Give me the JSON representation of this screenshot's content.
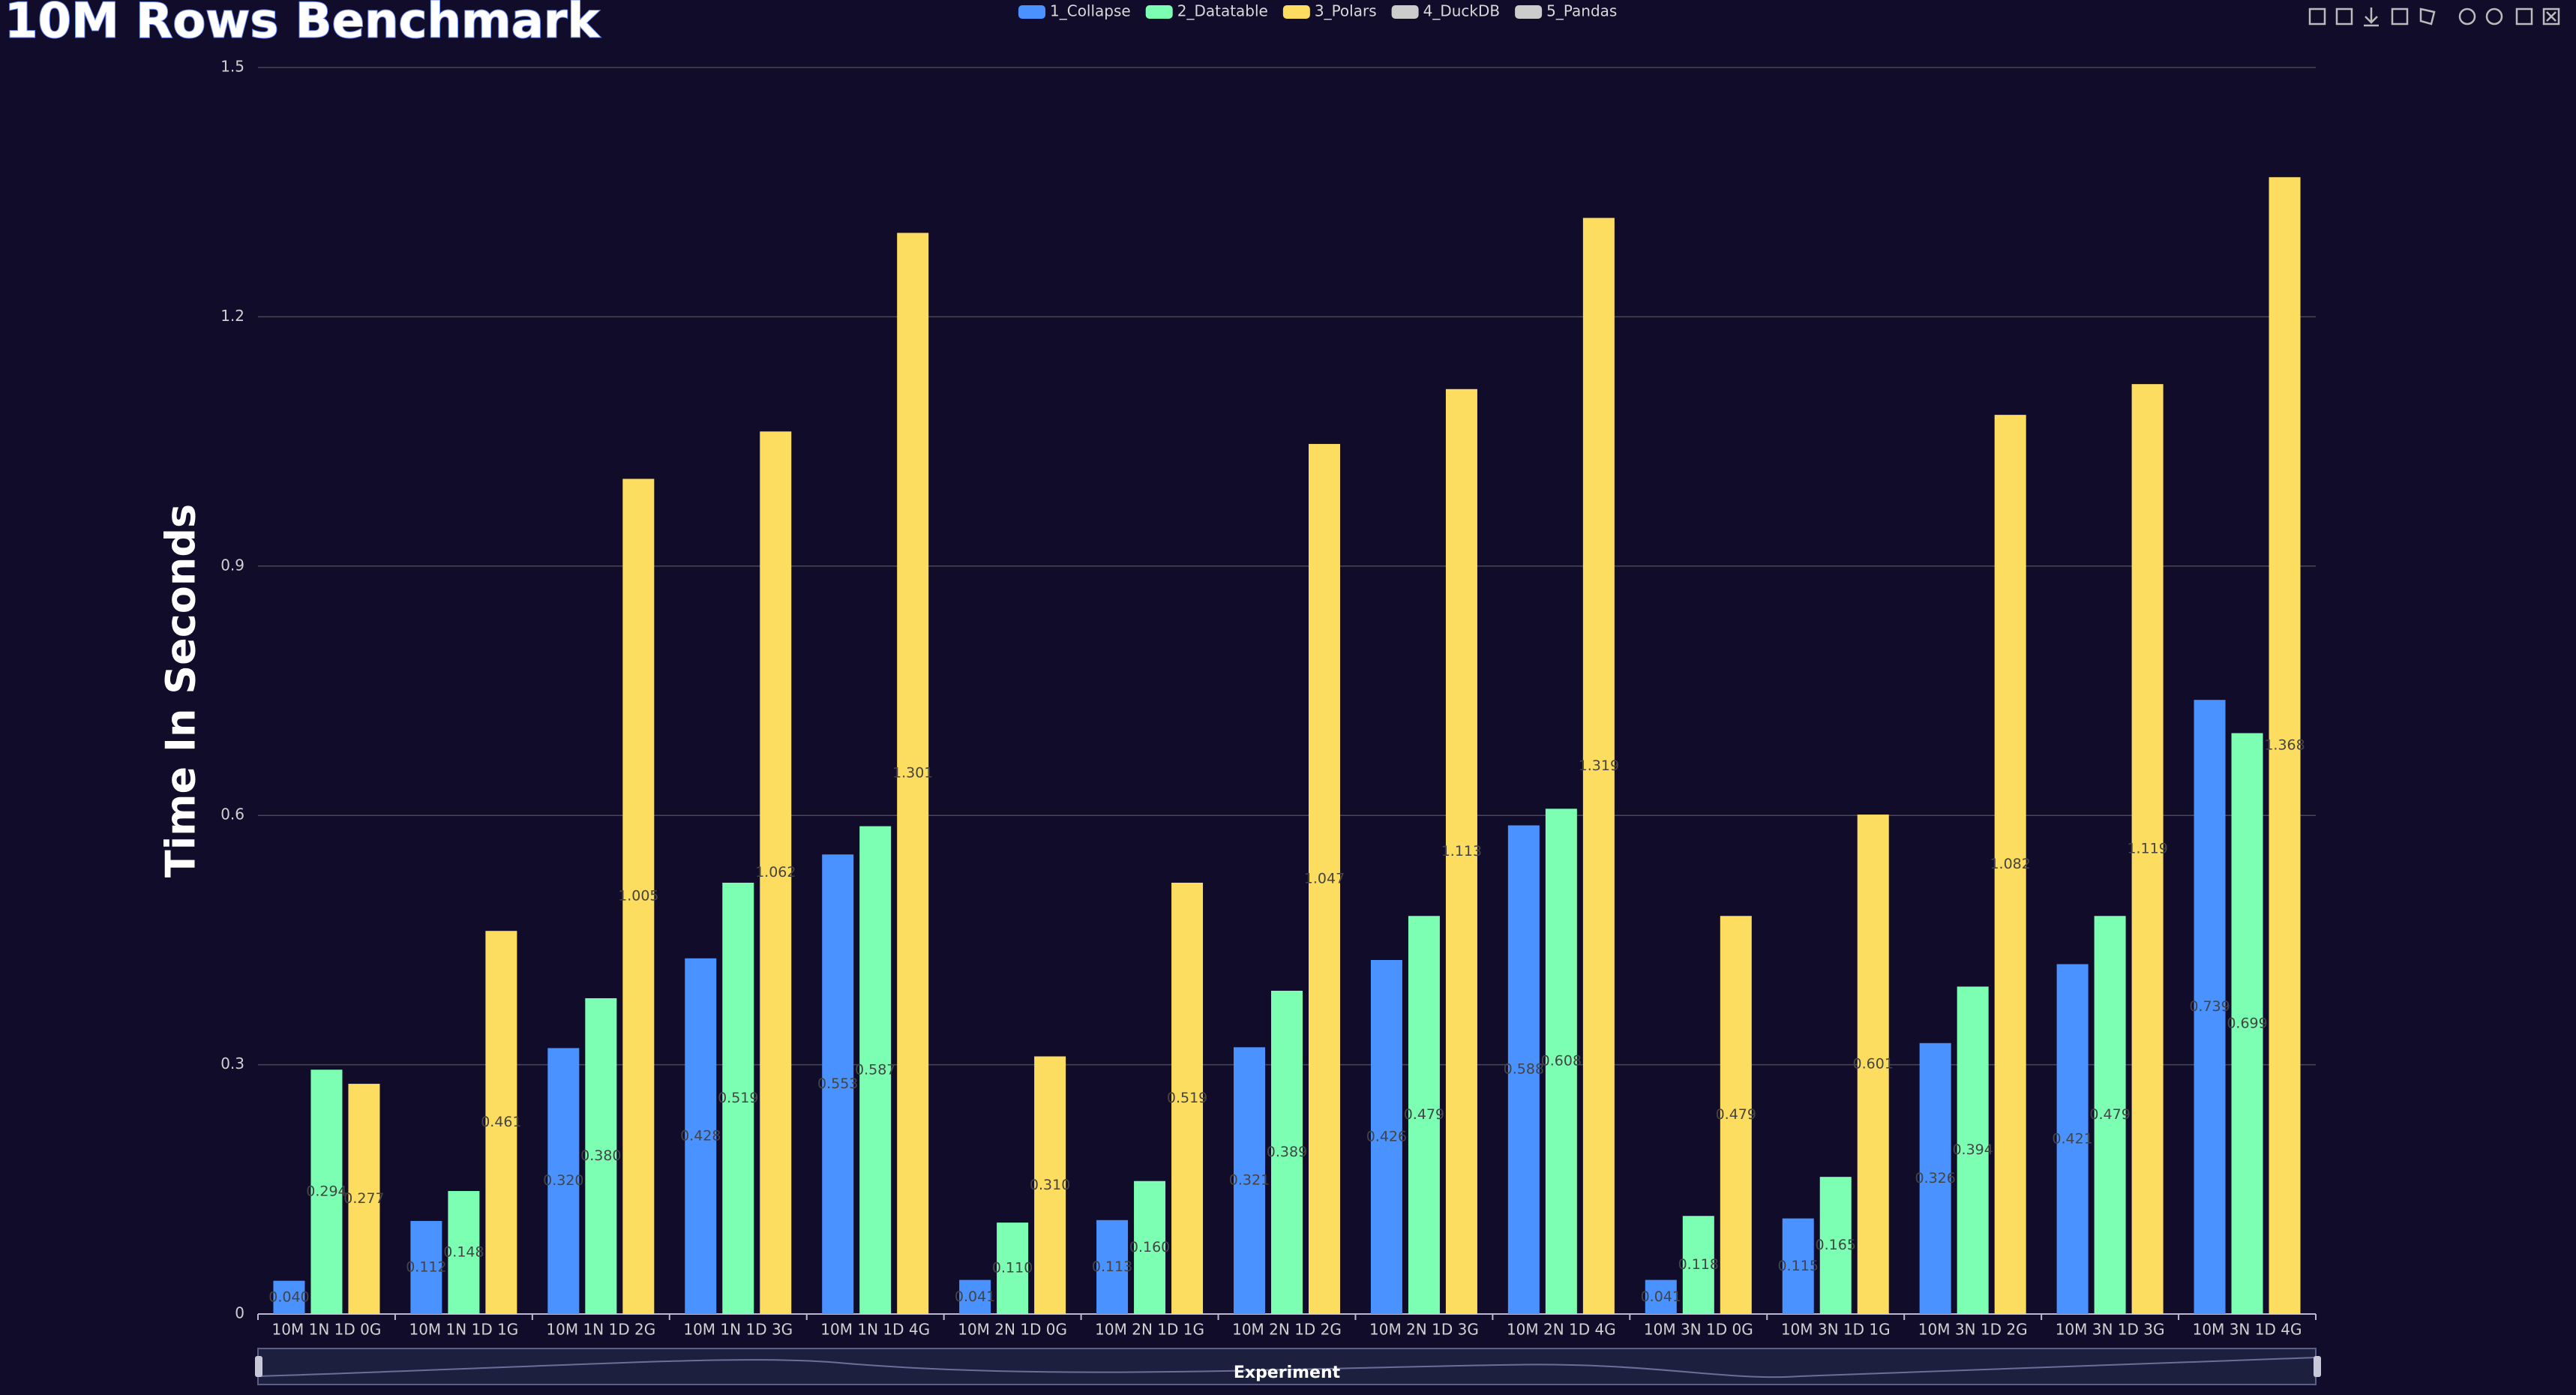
{
  "chart_data": {
    "type": "bar",
    "title": "10M Rows Benchmark",
    "y_label": "Time In Seconds",
    "x_label": "Experiment",
    "categories": [
      "10M 1N 1D 0G",
      "10M 1N 1D 1G",
      "10M 1N 1D 2G",
      "10M 1N 1D 3G",
      "10M 1N 1D 4G",
      "10M 2N 1D 0G",
      "10M 2N 1D 1G",
      "10M 2N 1D 2G",
      "10M 2N 1D 3G",
      "10M 2N 1D 4G",
      "10M 3N 1D 0G",
      "10M 3N 1D 1G",
      "10M 3N 1D 2G",
      "10M 3N 1D 3G",
      "10M 3N 1D 4G"
    ],
    "series": [
      {
        "name": "1_Collapse",
        "color": "#4992ff",
        "values": [
          0.04,
          0.112,
          0.32,
          0.428,
          0.553,
          0.041,
          0.113,
          0.321,
          0.426,
          0.588,
          0.041,
          0.115,
          0.326,
          0.421,
          0.739
        ],
        "value_labels": [
          "0.040",
          "0.112",
          "0.320",
          "0.428",
          "0.553",
          "0.041",
          "0.113",
          "0.321",
          "0.426",
          "0.588",
          "0.041",
          "0.115",
          "0.326",
          "0.421",
          "0.739"
        ]
      },
      {
        "name": "2_Datatable",
        "color": "#7cffb2",
        "values": [
          0.294,
          0.148,
          0.38,
          0.519,
          0.587,
          0.11,
          0.16,
          0.389,
          0.479,
          0.608,
          0.118,
          0.165,
          0.394,
          0.479,
          0.699
        ],
        "value_labels": [
          "0.294",
          "0.148",
          "0.380",
          "0.519",
          "0.587",
          "0.110",
          "0.160",
          "0.389",
          "0.479",
          "0.608",
          "0.118",
          "0.165",
          "0.394",
          "0.479",
          "0.699"
        ]
      },
      {
        "name": "3_Polars",
        "color": "#fddd60",
        "values": [
          0.277,
          0.461,
          1.005,
          1.062,
          1.301,
          0.31,
          0.519,
          1.047,
          1.113,
          1.319,
          0.479,
          0.601,
          1.082,
          1.119,
          1.368
        ],
        "value_labels": [
          "0.277",
          "0.461",
          "1.005",
          "1.062",
          "1.301",
          "0.310",
          "0.519",
          "1.047",
          "1.113",
          "1.319",
          "0.479",
          "0.601",
          "1.082",
          "1.119",
          "1.368"
        ]
      }
    ],
    "inactive_series": [
      {
        "name": "4_DuckDB",
        "color": "#cccccc"
      },
      {
        "name": "5_Pandas",
        "color": "#cccccc"
      }
    ],
    "ylim": [
      0,
      1.5
    ],
    "yticks": [
      0,
      0.3,
      0.6,
      0.9,
      1.2,
      1.5
    ],
    "grid": true,
    "legend": "top"
  }
}
